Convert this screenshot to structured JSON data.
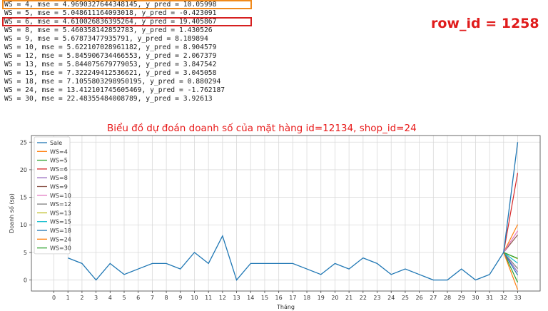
{
  "log_lines": [
    {
      "text": "WS = 4, mse = 4.969032764434814​5, y_pred = 10.05998",
      "highlight": "orange"
    },
    {
      "text": "WS = 5, mse = 5.048611164093018, y_pred = -0.423091",
      "highlight": ""
    },
    {
      "text": "WS = 6, mse = 4.610026836395264, y_pred = 19.405867",
      "highlight": "red"
    },
    {
      "text": "WS = 8, mse = 5.460358142852783, y_pred = 1.430526",
      "highlight": ""
    },
    {
      "text": "WS = 9, mse = 5.67873477935791, y_pred = 8.189894",
      "highlight": ""
    },
    {
      "text": "WS = 10, mse = 5.622107028961182, y_pred = 8.904579",
      "highlight": ""
    },
    {
      "text": "WS = 12, mse = 5.845906734466553, y_pred = 2.067379",
      "highlight": ""
    },
    {
      "text": "WS = 13, mse = 5.844075679779053, y_pred = 3.847542",
      "highlight": ""
    },
    {
      "text": "WS = 15, mse = 7.322249412536621, y_pred = 3.045058",
      "highlight": ""
    },
    {
      "text": "WS = 18, mse = 7.105580329895019​5, y_pred = 0.880294",
      "highlight": ""
    },
    {
      "text": "WS = 24, mse = 13.412101745605469, y_pred = -1.762187",
      "highlight": ""
    },
    {
      "text": "WS = 30, mse = 22.48355484008789, y_pred = 3.92613",
      "highlight": ""
    }
  ],
  "row_id_label": "row_id = 1258",
  "chart_title": "Biểu đồ dự đoán doanh số của mặt hàng id=12134, shop_id=24",
  "chart_data": {
    "type": "line",
    "title": "Biểu đồ dự đoán doanh số của mặt hàng id=12134, shop_id=24",
    "xlabel": "Tháng",
    "ylabel": "Doanh số (sp)",
    "x": [
      0,
      1,
      2,
      3,
      4,
      5,
      6,
      7,
      8,
      9,
      10,
      11,
      12,
      13,
      14,
      15,
      16,
      17,
      18,
      19,
      20,
      21,
      22,
      23,
      24,
      25,
      26,
      27,
      28,
      29,
      30,
      31,
      32,
      33
    ],
    "xlim": [
      -1.6,
      34.6
    ],
    "ylim": [
      -2.0,
      26.2
    ],
    "yticks": [
      0,
      5,
      10,
      15,
      20,
      25
    ],
    "grid": true,
    "legend_position": "top-left",
    "sale": {
      "name": "Sale",
      "x": [
        1,
        2,
        3,
        4,
        5,
        6,
        7,
        8,
        9,
        10,
        11,
        12,
        13,
        14,
        15,
        16,
        17,
        18,
        19,
        20,
        21,
        22,
        23,
        24,
        25,
        26,
        27,
        28,
        29,
        30,
        31,
        32,
        33
      ],
      "values": [
        4,
        3,
        0,
        3,
        1,
        2,
        3,
        3,
        2,
        5,
        3,
        8,
        0,
        3,
        3,
        3,
        3,
        2,
        1,
        3,
        2,
        4,
        3,
        1,
        2,
        1,
        0,
        0,
        2,
        0,
        1,
        5,
        25
      ]
    },
    "prediction_start": {
      "x": 32,
      "y": 5
    },
    "predictions": [
      {
        "name": "WS=4",
        "y_pred": 10.05998
      },
      {
        "name": "WS=5",
        "y_pred": -0.423091
      },
      {
        "name": "WS=6",
        "y_pred": 19.405867
      },
      {
        "name": "WS=8",
        "y_pred": 1.430526
      },
      {
        "name": "WS=9",
        "y_pred": 8.189894
      },
      {
        "name": "WS=10",
        "y_pred": 8.904579
      },
      {
        "name": "WS=12",
        "y_pred": 2.067379
      },
      {
        "name": "WS=13",
        "y_pred": 3.847542
      },
      {
        "name": "WS=15",
        "y_pred": 3.045058
      },
      {
        "name": "WS=18",
        "y_pred": 0.880294
      },
      {
        "name": "WS=24",
        "y_pred": -1.762187
      },
      {
        "name": "WS=30",
        "y_pred": 3.92613
      }
    ],
    "colors": [
      "#1f77b4",
      "#ff7f0e",
      "#2ca02c",
      "#d62728",
      "#9467bd",
      "#8c564b",
      "#e377c2",
      "#7f7f7f",
      "#bcbd22",
      "#17becf",
      "#1f77b4",
      "#ff7f0e",
      "#2ca02c"
    ]
  }
}
